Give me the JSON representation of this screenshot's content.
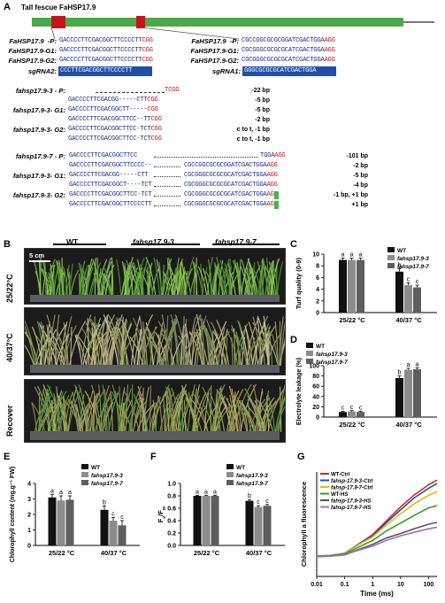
{
  "panels": {
    "A": "A",
    "B": "B",
    "C": "C",
    "D": "D",
    "E": "E",
    "F": "F",
    "G": "G"
  },
  "gene_title": "Tall fescue FaHSP17.9",
  "left_block": {
    "rows": [
      {
        "label": "FaHSP17.9  -P:",
        "seq": "GACCCCTTCGACGGCTTCCCCTT",
        "pam": "CGG"
      },
      {
        "label": "FaHSP17.9-G1:",
        "seq": "GACCCCTTCGACGGCTTCCCCTT",
        "pam": "CGG"
      },
      {
        "label": "FaHSP17.9-G2:",
        "seq": "GACCCCTTCGACGGCTTCCCCTT",
        "pam": "CGG"
      }
    ],
    "sgrna": {
      "label": "sgRNA2:",
      "seq": "CCCTTCGACGGCTTCCCCTT"
    }
  },
  "right_block": {
    "rows": [
      {
        "label": "FaHSP17.9  -P:",
        "seq": "CGCCGGCGCGCGGATCGACTGGA",
        "pam": "AGG"
      },
      {
        "label": "FaHSP17.9-G1:",
        "seq": "CGCGGGCGCGCGCATCGACTGGA",
        "pam": "AGG"
      },
      {
        "label": "FaHSP17.9-G2:",
        "seq": "CGCGGGCGCGCGCATCGACTGGA",
        "pam": "AGG"
      }
    ],
    "sgrna": {
      "label": "sgRNA1:",
      "seq": "GGGCGCGCGCATCGACTGGA"
    }
  },
  "mutant3": {
    "rows": [
      {
        "label": "fahsp17.9-3 - P:",
        "seq": "",
        "pam": "TCGG",
        "note": "-22 bp"
      },
      {
        "label": "",
        "seq": "GACCCCTTCGACGG-----CTT",
        "pam": "CGG",
        "note": "-5 bp"
      },
      {
        "label": "fahsp17.9-3- G1:",
        "seq": "GACCCCTTCGACGGCTT-----",
        "pam": "CGG",
        "note": "-5 bp"
      },
      {
        "label": "",
        "seq": "GACCCCTTCGACGGCTTCC--TT",
        "pam": "CGG",
        "note": "-2 bp"
      },
      {
        "label": "fahsp17.9-3- G2:",
        "seq": "GACCCCTTCGACGGCTTCC-TCT",
        "pam": "CGG",
        "note": "c to t, -1 bp"
      },
      {
        "label": "",
        "seq": "GACCCCTTCGACGGCTTCC-TCT",
        "pam": "CGG",
        "note": "c to t, -1 bp"
      }
    ]
  },
  "mutant7": {
    "rows": [
      {
        "label": "fahsp17.9-7 - P:",
        "left": "GACCCCTTCGACGGCTTCC",
        "right": "TGGA",
        "pam": "AGG",
        "note": "-101 bp"
      },
      {
        "label": "",
        "left": "GACCCCTTCGACGGCTTCCCC--",
        "right": "CGCCGGCGCGCGGATCGACTGGA",
        "pam": "AGG",
        "note": "-2 bp"
      },
      {
        "label": "fahsp17.9-3- G1:",
        "left": "GACCCCTTCGACGG-----CTT",
        "right": "CGCGGGCGCGCGCATCGACTGGA",
        "pam": "AGG",
        "note": "-5 bp"
      },
      {
        "label": "",
        "left": "GACCCCTTCGACGGCT----TCT",
        "right": "CGCGGGCGCGCGCATCGACTGGA",
        "pam": "AGG",
        "note": "-4 bp"
      },
      {
        "label": "fahsp17.9-3- G2:",
        "left": "GACCCCTTCGACGGCTTCC-TCT",
        "right": "CGCGGGCGCGCGCATCGACTGGA",
        "pam": "AGG",
        "note": "-1 bp, +1 bp"
      },
      {
        "label": "",
        "left": "GACCCCTTCGACGGCTTCCCCTT",
        "right": "CGCGGGCGCGCGCATCGACTGGA",
        "pam": "AGG",
        "note": "+1 bp"
      }
    ]
  },
  "photo_panel": {
    "groups": [
      "WT",
      "fahsp17.9-3",
      "fahsp17.9-7"
    ],
    "scale": "5 cm",
    "conditions": [
      "25/22°C",
      "40/37°C",
      "Recover"
    ]
  },
  "charts": {
    "C": {
      "ylabel": "Turf quality (0-9)",
      "xcats": [
        "25/22 °C",
        "40/37 °C"
      ],
      "legend": [
        "WT",
        "fahsp17.9-3",
        "fahsp17.9-7"
      ]
    },
    "D": {
      "ylabel": "Electrolyte leakage (%)",
      "xcats": [
        "25/22 °C",
        "40/37 °C"
      ],
      "legend": [
        "WT",
        "fahsp17.9-3",
        "fahsp17.9-7"
      ]
    },
    "E": {
      "ylabel": "Chlorophyll content (mg.g⁻¹ FW)",
      "xcats": [
        "25/22 °C",
        "40/37 °C"
      ],
      "legend": [
        "WT",
        "fahsp17.9-3",
        "fahsp17.9-7"
      ]
    },
    "F": {
      "ylabel": "Fv/Fm",
      "xcats": [
        "25/22 °C",
        "40/37 °C"
      ],
      "legend": [
        "WT",
        "fahsp17.9-3",
        "fahsp17.9-7"
      ]
    },
    "G": {
      "ylabel": "Chlorophyll a fluorescence",
      "xlabel": "Time (ms)",
      "legend": [
        "WT-Ctrl",
        "fahsp-17.9-3-Ctrl",
        "fahsp-17.9-7-Ctrl",
        "WT-HS",
        "fahsp-17.9-3-HS",
        "fahsp-17.9-7-HS"
      ]
    }
  },
  "chart_data": [
    {
      "type": "bar",
      "panel": "C",
      "categories": [
        "25/22 °C",
        "40/37 °C"
      ],
      "ylim": [
        0,
        10
      ],
      "yticks": [
        0,
        2,
        4,
        6,
        8,
        10
      ],
      "series": [
        {
          "name": "WT",
          "values": [
            9.0,
            7.0
          ],
          "errors": [
            0.3,
            0.5
          ],
          "letters": [
            "a",
            "b"
          ],
          "color": "#111111"
        },
        {
          "name": "fahsp17.9-3",
          "values": [
            9.0,
            4.7
          ],
          "errors": [
            0.3,
            0.4
          ],
          "letters": [
            "a",
            "c"
          ],
          "color": "#8c8c8c"
        },
        {
          "name": "fahsp17.9-7",
          "values": [
            9.0,
            4.3
          ],
          "errors": [
            0.3,
            0.4
          ],
          "letters": [
            "a",
            "c"
          ],
          "color": "#5e5e5e"
        }
      ]
    },
    {
      "type": "bar",
      "panel": "D",
      "categories": [
        "25/22 °C",
        "40/37 °C"
      ],
      "ylim": [
        0,
        100
      ],
      "yticks": [
        0,
        20,
        40,
        60,
        80,
        100
      ],
      "series": [
        {
          "name": "WT",
          "values": [
            10,
            76
          ],
          "errors": [
            1.5,
            4
          ],
          "letters": [
            "c",
            "b"
          ],
          "color": "#111111"
        },
        {
          "name": "fahsp17.9-3",
          "values": [
            11,
            92
          ],
          "errors": [
            1.5,
            3
          ],
          "letters": [
            "c",
            "a"
          ],
          "color": "#8c8c8c"
        },
        {
          "name": "fahsp17.9-7",
          "values": [
            10,
            93
          ],
          "errors": [
            1.5,
            3
          ],
          "letters": [
            "c",
            "a"
          ],
          "color": "#5e5e5e"
        }
      ]
    },
    {
      "type": "bar",
      "panel": "E",
      "categories": [
        "25/22 °C",
        "40/37 °C"
      ],
      "ylim": [
        0,
        4
      ],
      "yticks": [
        0,
        1,
        2,
        3,
        4
      ],
      "series": [
        {
          "name": "WT",
          "values": [
            3.1,
            2.3
          ],
          "errors": [
            0.2,
            0.25
          ],
          "letters": [
            "a",
            "b"
          ],
          "color": "#111111"
        },
        {
          "name": "fahsp17.9-3",
          "values": [
            2.9,
            1.6
          ],
          "errors": [
            0.3,
            0.2
          ],
          "letters": [
            "a",
            "c"
          ],
          "color": "#8c8c8c"
        },
        {
          "name": "fahsp17.9-7",
          "values": [
            2.95,
            1.3
          ],
          "errors": [
            0.25,
            0.3
          ],
          "letters": [
            "a",
            "c"
          ],
          "color": "#5e5e5e"
        }
      ]
    },
    {
      "type": "bar",
      "panel": "F",
      "categories": [
        "25/22 °C",
        "40/37 °C"
      ],
      "ylim": [
        0,
        1
      ],
      "yticks": [
        0,
        0.2,
        0.4,
        0.6,
        0.8,
        1.0
      ],
      "series": [
        {
          "name": "WT",
          "values": [
            0.8,
            0.72
          ],
          "errors": [
            0.01,
            0.02
          ],
          "letters": [
            "a",
            "b"
          ],
          "color": "#111111"
        },
        {
          "name": "fahsp17.9-3",
          "values": [
            0.8,
            0.62
          ],
          "errors": [
            0.01,
            0.02
          ],
          "letters": [
            "a",
            "c"
          ],
          "color": "#8c8c8c"
        },
        {
          "name": "fahsp17.9-7",
          "values": [
            0.8,
            0.64
          ],
          "errors": [
            0.01,
            0.02
          ],
          "letters": [
            "a",
            "c"
          ],
          "color": "#5e5e5e"
        }
      ]
    },
    {
      "type": "line",
      "panel": "G",
      "xscale": "log",
      "xlim": [
        0.01,
        200
      ],
      "xticks": [
        0.01,
        0.1,
        1,
        10,
        100
      ],
      "ylim": [
        0,
        1.8
      ],
      "x": [
        0.01,
        0.03,
        0.1,
        0.3,
        1,
        3,
        10,
        30,
        100,
        200
      ],
      "series": [
        {
          "name": "WT-Ctrl",
          "color": "#d62728",
          "values": [
            0.35,
            0.36,
            0.4,
            0.55,
            0.72,
            0.95,
            1.2,
            1.4,
            1.58,
            1.66
          ]
        },
        {
          "name": "fahsp-17.9-3-Ctrl",
          "color": "#1f4fb4",
          "values": [
            0.35,
            0.36,
            0.4,
            0.55,
            0.7,
            0.92,
            1.15,
            1.35,
            1.52,
            1.6
          ]
        },
        {
          "name": "fahsp-17.9-7-Ctrl",
          "color": "#f2b705",
          "values": [
            0.35,
            0.36,
            0.4,
            0.54,
            0.68,
            0.88,
            1.08,
            1.25,
            1.4,
            1.46
          ]
        },
        {
          "name": "WT-HS",
          "color": "#2ca02c",
          "values": [
            0.35,
            0.36,
            0.39,
            0.5,
            0.62,
            0.78,
            0.92,
            1.05,
            1.18,
            1.22
          ]
        },
        {
          "name": "fahsp-17.9-3-HS",
          "color": "#555555",
          "values": [
            0.34,
            0.35,
            0.37,
            0.46,
            0.55,
            0.66,
            0.74,
            0.82,
            0.9,
            0.93
          ]
        },
        {
          "name": "fahsp-17.9-7-HS",
          "color": "#9e6fbf",
          "values": [
            0.34,
            0.35,
            0.37,
            0.45,
            0.52,
            0.62,
            0.7,
            0.76,
            0.82,
            0.85
          ]
        }
      ]
    }
  ]
}
